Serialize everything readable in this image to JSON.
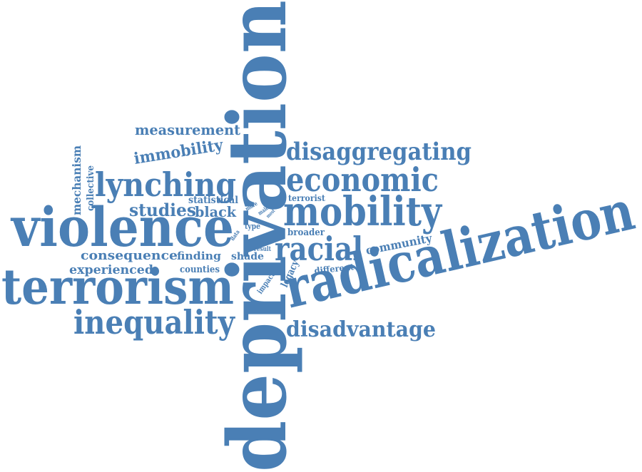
{
  "style": {
    "word_color": "#4a7fb5",
    "background": "#ffffff"
  },
  "words": {
    "deprivation": "deprivation",
    "radicalization": "radicalization",
    "violence": "violence",
    "terrorism": "terrorism",
    "mobility": "mobility",
    "inequality": "inequality",
    "lynching": "lynching",
    "economic": "economic",
    "racial": "racial",
    "disaggregating": "disaggregating",
    "disadvantage": "disadvantage",
    "measurement": "measurement",
    "immobility": "immobility",
    "studies": "studies",
    "black": "black",
    "consequence": "consequence",
    "experienced": "experienced",
    "mechanism": "mechanism",
    "collective": "collective",
    "statistical": "statistical",
    "finding": "finding",
    "shade": "shade",
    "counties": "counties",
    "community": "community",
    "broader": "broader",
    "terrorist": "terrorist",
    "different": "different",
    "legacy": "legacy",
    "impact": "impact",
    "type": "type",
    "result": "result",
    "data": "data",
    "male": "male",
    "more": "more",
    "most": "most"
  }
}
